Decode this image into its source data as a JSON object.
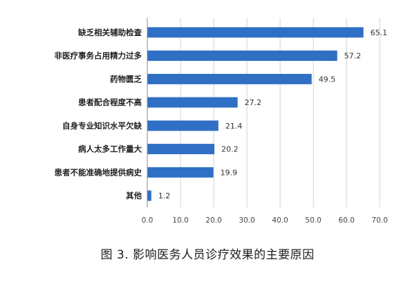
{
  "chart_data": {
    "type": "bar",
    "orientation": "horizontal",
    "categories": [
      "缺乏相关辅助检查",
      "非医疗事务占用精力过多",
      "药物匮乏",
      "患者配合程度不高",
      "自身专业知识水平欠缺",
      "病人太多工作量大",
      "患者不能准确地提供病史",
      "其他"
    ],
    "values": [
      65.1,
      57.2,
      49.5,
      27.2,
      21.4,
      20.2,
      19.9,
      1.2
    ],
    "value_labels": [
      "65.1",
      "57.2",
      "49.5",
      "27.2",
      "21.4",
      "20.2",
      "19.9",
      "1.2"
    ],
    "xlim": [
      0,
      70
    ],
    "ticks": [
      "0.0",
      "10.0",
      "20.0",
      "30.0",
      "40.0",
      "50.0",
      "60.0",
      "70.0"
    ],
    "grid": true,
    "bar_color": "#2f6fc4",
    "title": "",
    "xlabel": "",
    "ylabel": ""
  },
  "caption": "图 3. 影响医务人员诊疗效果的主要原因"
}
